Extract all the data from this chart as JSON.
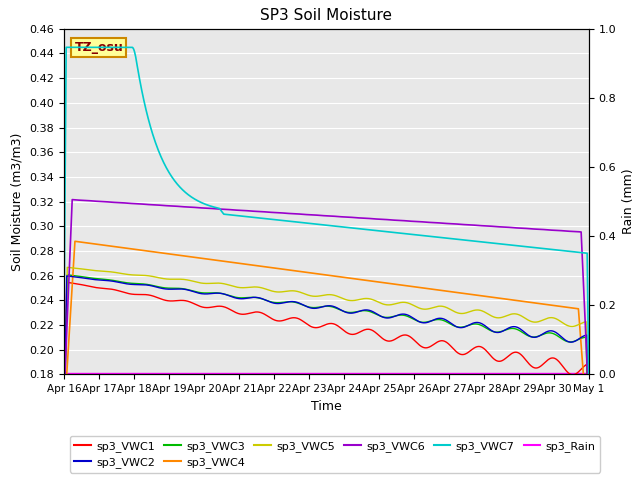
{
  "title": "SP3 Soil Moisture",
  "xlabel": "Time",
  "ylabel_left": "Soil Moisture (m3/m3)",
  "ylabel_right": "Rain (mm)",
  "ylim_left": [
    0.18,
    0.46
  ],
  "ylim_right": [
    0.0,
    1.0
  ],
  "xtick_labels": [
    "Apr 16",
    "Apr 17",
    "Apr 18",
    "Apr 19",
    "Apr 20",
    "Apr 21",
    "Apr 22",
    "Apr 23",
    "Apr 24",
    "Apr 25",
    "Apr 26",
    "Apr 27",
    "Apr 28",
    "Apr 29",
    "Apr 30",
    "May 1"
  ],
  "bg_color": "#e8e8e8",
  "annotation_text": "TZ_osu",
  "series": {
    "sp3_VWC1": {
      "color": "#ff0000",
      "lw": 1.0
    },
    "sp3_VWC2": {
      "color": "#0000cc",
      "lw": 1.0
    },
    "sp3_VWC3": {
      "color": "#00bb00",
      "lw": 1.0
    },
    "sp3_VWC4": {
      "color": "#ff8800",
      "lw": 1.2
    },
    "sp3_VWC5": {
      "color": "#cccc00",
      "lw": 1.0
    },
    "sp3_VWC6": {
      "color": "#9900cc",
      "lw": 1.2
    },
    "sp3_VWC7": {
      "color": "#00cccc",
      "lw": 1.2
    },
    "sp3_Rain": {
      "color": "#ff00ff",
      "lw": 1.0
    }
  }
}
